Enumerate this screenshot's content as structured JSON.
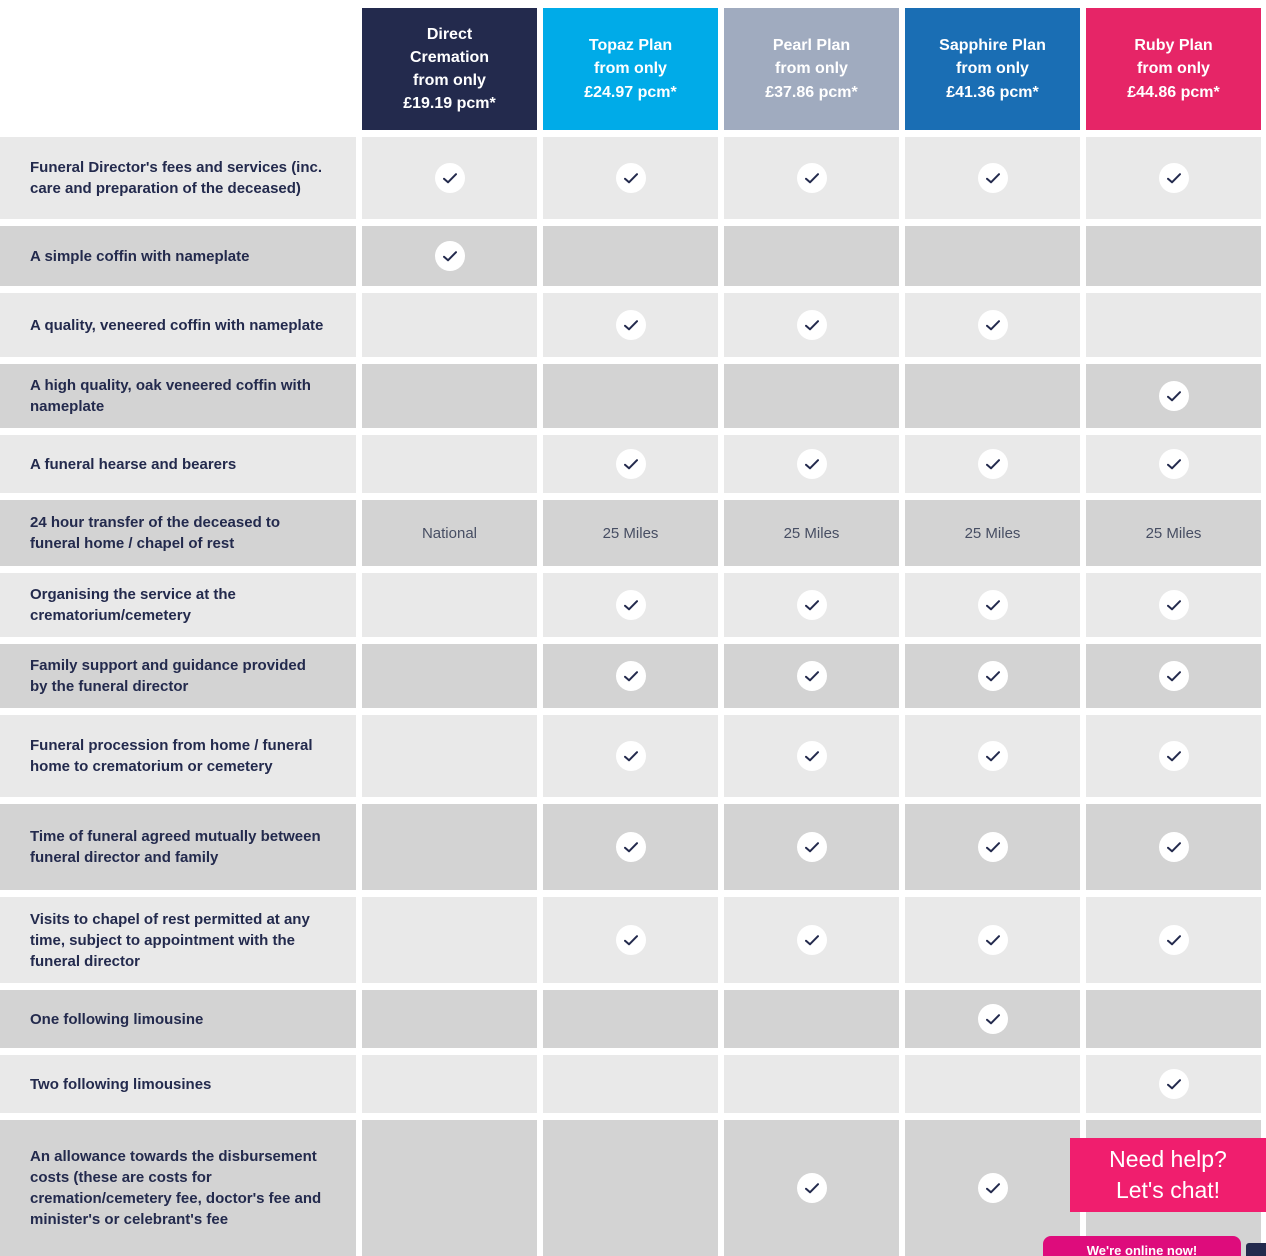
{
  "table": {
    "plans": [
      {
        "name": "Direct Cremation",
        "tagline": "from only",
        "price": "£19.19 pcm*",
        "color": "#232a4d"
      },
      {
        "name": "Topaz Plan",
        "tagline": "from only",
        "price": "£24.97 pcm*",
        "color": "#00abe8"
      },
      {
        "name": "Pearl Plan",
        "tagline": "from only",
        "price": "£37.86 pcm*",
        "color": "#a0abbf"
      },
      {
        "name": "Sapphire Plan",
        "tagline": "from only",
        "price": "£41.36 pcm*",
        "color": "#1a6eb4"
      },
      {
        "name": "Ruby Plan",
        "tagline": "from only",
        "price": "£44.86 pcm*",
        "color": "#e62567"
      }
    ],
    "rows": [
      {
        "feature": "Funeral Director's fees and services (inc. care and preparation of the deceased)",
        "cells": [
          "check",
          "check",
          "check",
          "check",
          "check"
        ]
      },
      {
        "feature": "A simple coffin with nameplate",
        "cells": [
          "check",
          "",
          "",
          "",
          ""
        ]
      },
      {
        "feature": "A quality, veneered coffin with nameplate",
        "cells": [
          "",
          "check",
          "check",
          "check",
          ""
        ]
      },
      {
        "feature": "A high quality, oak veneered coffin with nameplate",
        "cells": [
          "",
          "",
          "",
          "",
          "check"
        ]
      },
      {
        "feature": "A funeral hearse and bearers",
        "cells": [
          "",
          "check",
          "check",
          "check",
          "check"
        ]
      },
      {
        "feature": "24 hour transfer of the deceased to funeral home / chapel of rest",
        "cells": [
          "National",
          "25 Miles",
          "25 Miles",
          "25 Miles",
          "25 Miles"
        ]
      },
      {
        "feature": "Organising the service at the crematorium/cemetery",
        "cells": [
          "",
          "check",
          "check",
          "check",
          "check"
        ]
      },
      {
        "feature": "Family support and guidance provided by the funeral director",
        "cells": [
          "",
          "check",
          "check",
          "check",
          "check"
        ]
      },
      {
        "feature": "Funeral procession from home / funeral home to crematorium or cemetery",
        "cells": [
          "",
          "check",
          "check",
          "check",
          "check"
        ]
      },
      {
        "feature": "Time of funeral agreed mutually between funeral director and family",
        "cells": [
          "",
          "check",
          "check",
          "check",
          "check"
        ]
      },
      {
        "feature": "Visits to chapel of rest permitted at any time, subject to appointment with the funeral director",
        "cells": [
          "",
          "check",
          "check",
          "check",
          "check"
        ]
      },
      {
        "feature": "One following limousine",
        "cells": [
          "",
          "",
          "",
          "check",
          ""
        ]
      },
      {
        "feature": "Two following limousines",
        "cells": [
          "",
          "",
          "",
          "",
          "check"
        ]
      },
      {
        "feature": "An allowance towards the disbursement costs (these are costs for cremation/cemetery fee, doctor's fee and minister's or celebrant's fee",
        "cells": [
          "",
          "",
          "check",
          "check",
          ""
        ]
      }
    ]
  },
  "chat": {
    "prompt_line1": "Need help?",
    "prompt_line2": "Let's chat!",
    "status": "We're online now!",
    "box_color": "#f01e6e",
    "badge_color": "#de0c7c"
  }
}
